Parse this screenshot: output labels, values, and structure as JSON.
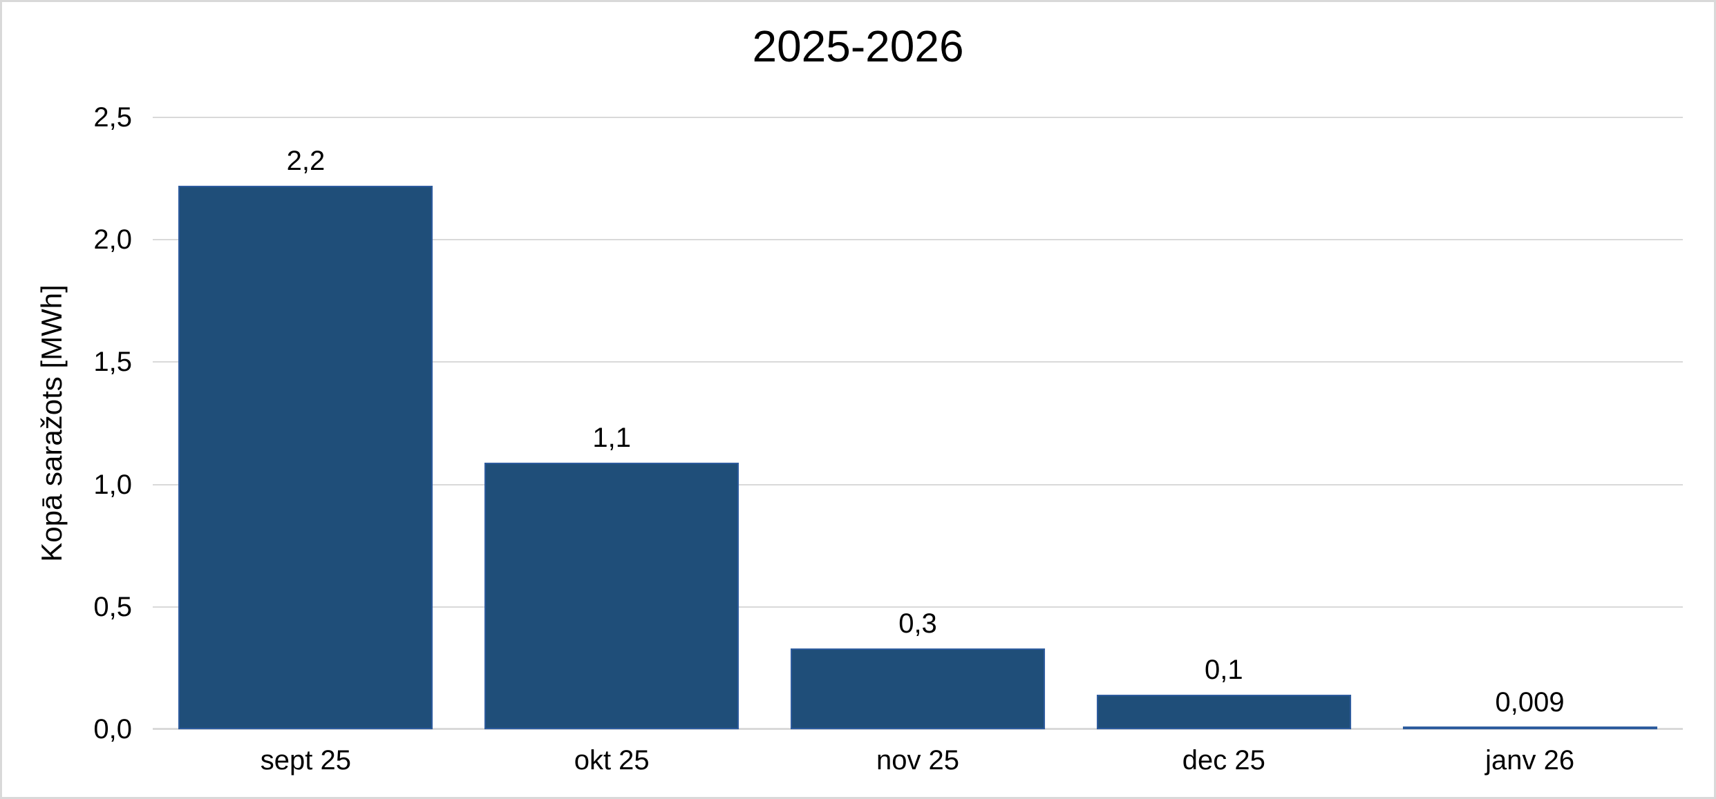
{
  "chart_data": {
    "type": "bar",
    "title": "2025-2026",
    "ylabel": "Kopā saražots [MWh]",
    "xlabel": "",
    "categories": [
      "sept 25",
      "okt 25",
      "nov 25",
      "dec 25",
      "janv 26"
    ],
    "values": [
      2.22,
      1.09,
      0.33,
      0.14,
      0.009
    ],
    "bar_labels": [
      "2,2",
      "1,1",
      "0,3",
      "0,1",
      "0,009"
    ],
    "ylim": [
      0,
      2.5
    ],
    "ytick_values": [
      0.0,
      0.5,
      1.0,
      1.5,
      2.0,
      2.5
    ],
    "ytick_labels": [
      "0,0",
      "0,5",
      "1,0",
      "1,5",
      "2,0",
      "2,5"
    ],
    "grid": true,
    "legend": false,
    "colors": {
      "bar_fill": "#1F4E79",
      "bar_border": "#2E5C9E",
      "gridline": "#D9D9D9",
      "text": "#000000",
      "frame_border": "#D9D9D9",
      "background": "#FFFFFF"
    }
  }
}
